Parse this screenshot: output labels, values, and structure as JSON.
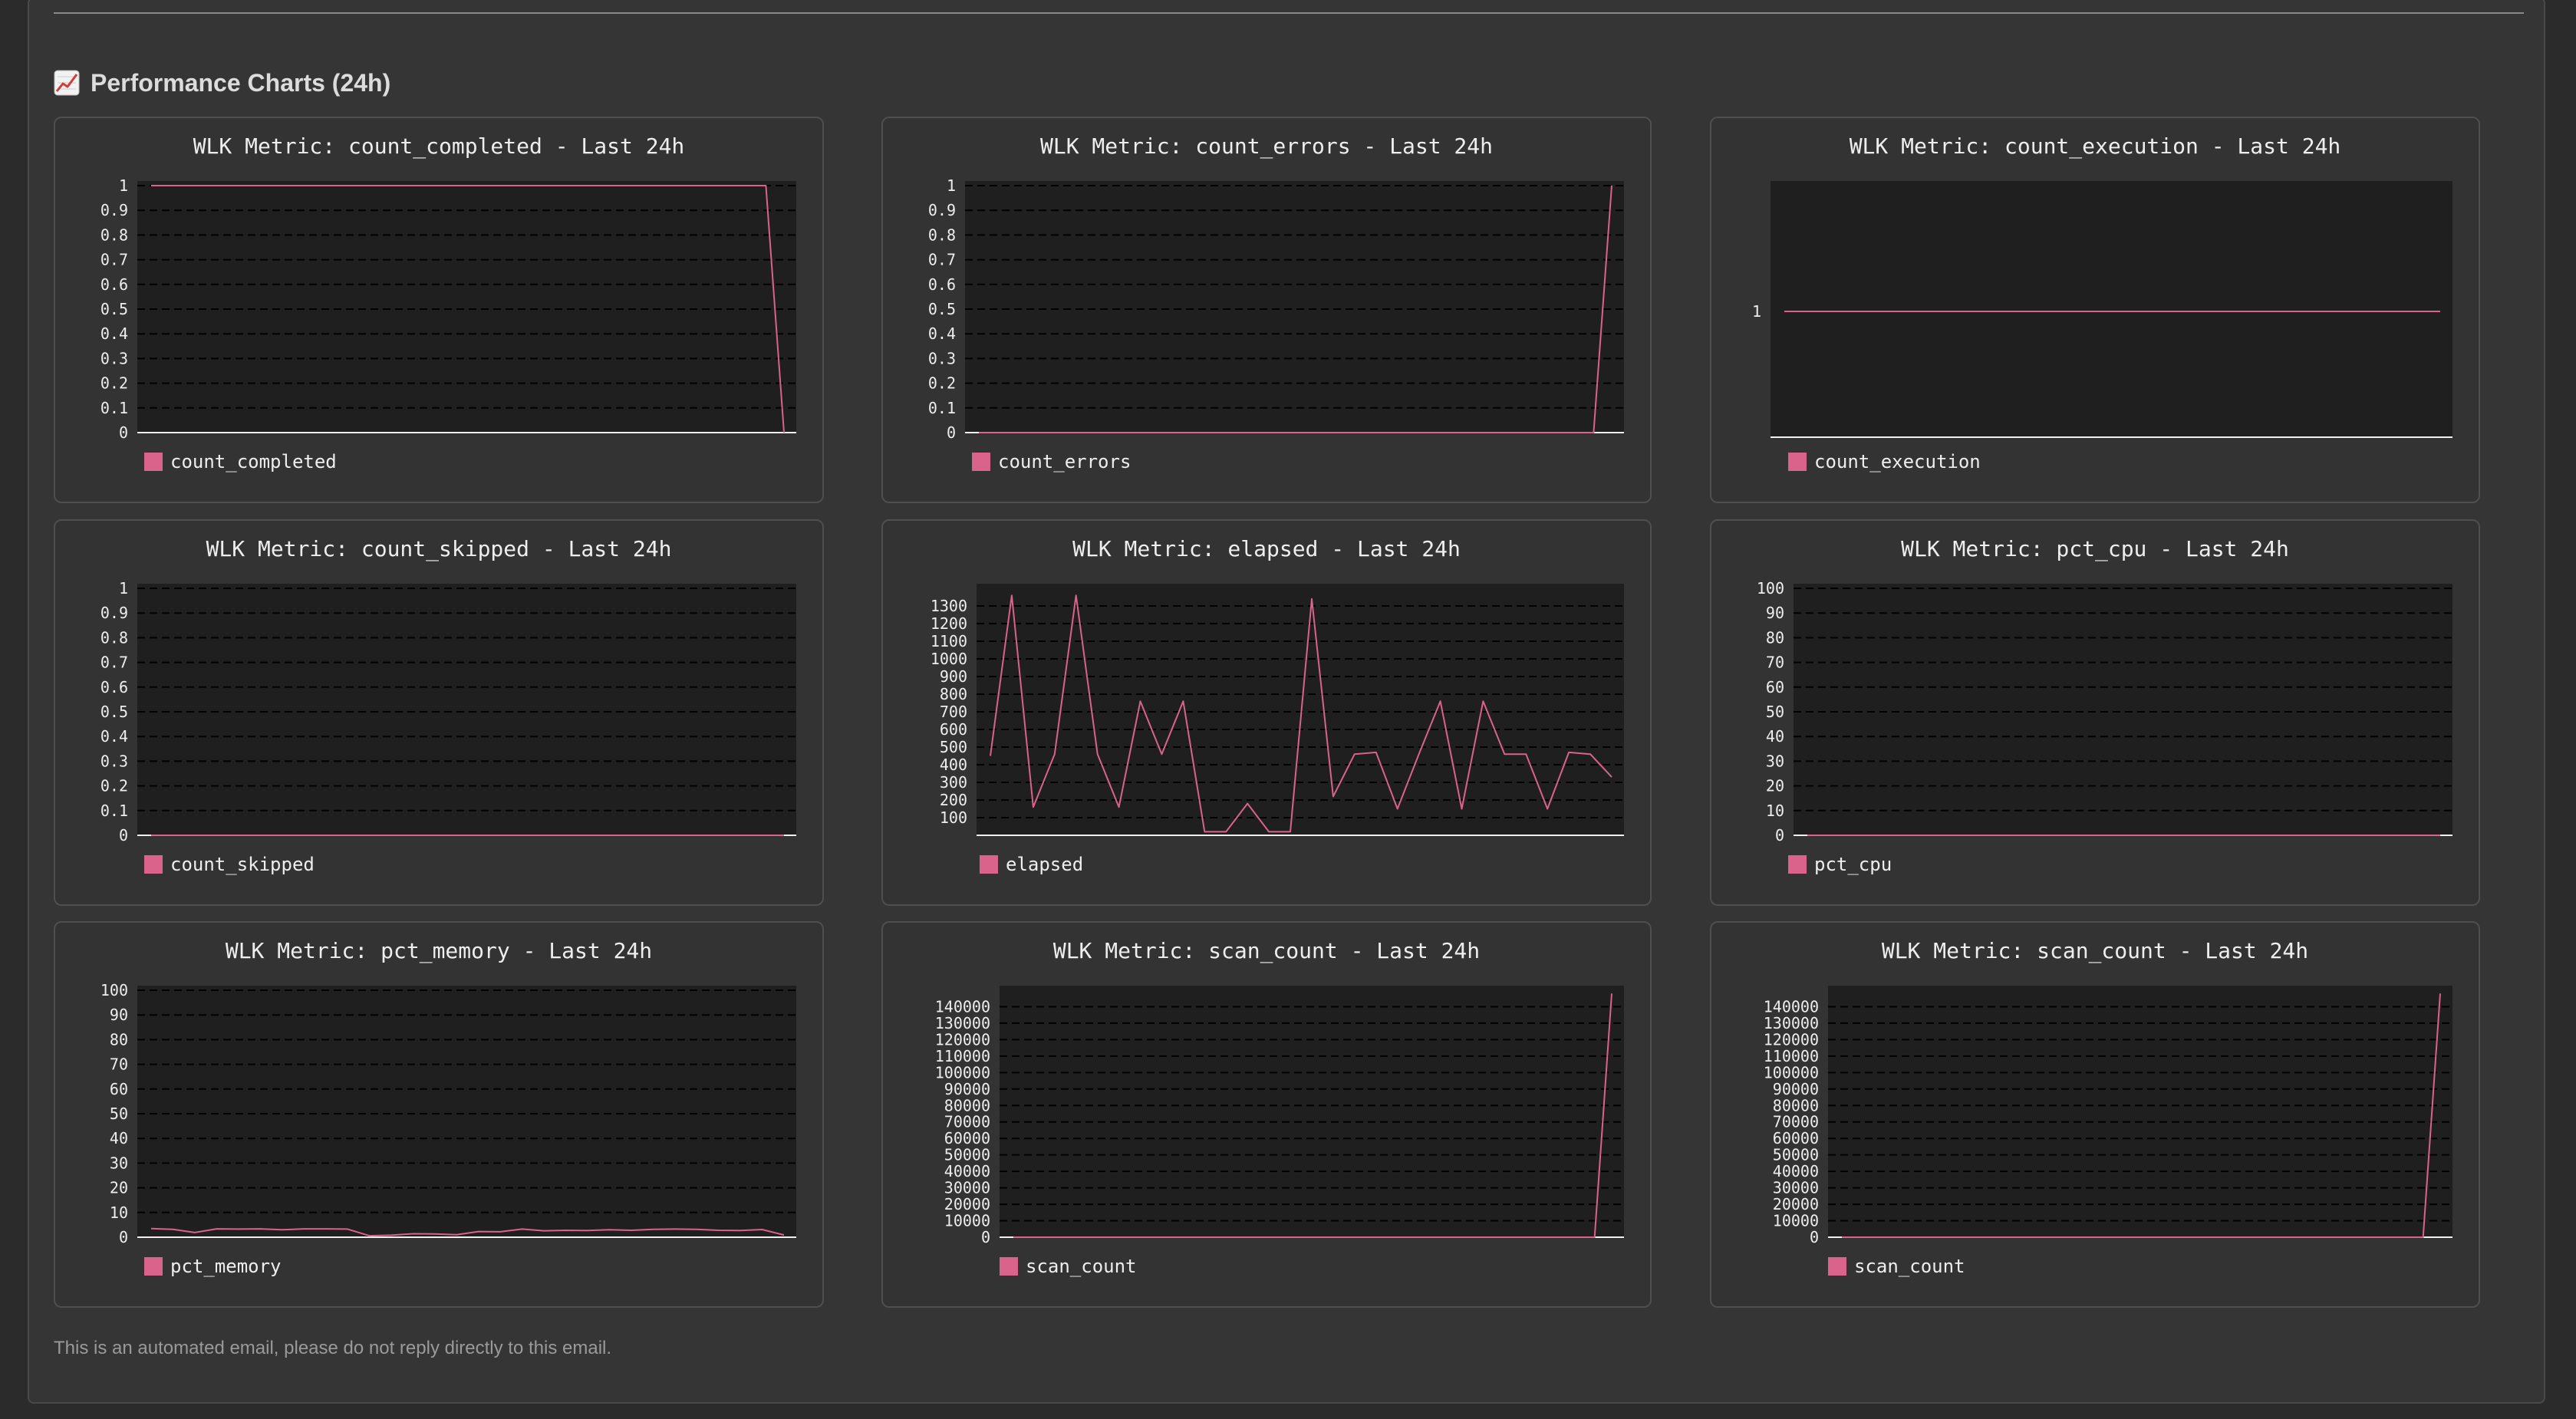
{
  "section": {
    "title": "Performance Charts (24h)",
    "icon": "chart-increasing-icon"
  },
  "colors": {
    "series": "#d9638a",
    "plot_bg": "#1f1f1f",
    "card_bg": "#333333",
    "text": "#eeeeee"
  },
  "chart_data": [
    {
      "type": "line",
      "title": "WLK Metric: count_completed - Last 24h",
      "series": [
        {
          "name": "count_completed",
          "values": [
            1,
            1,
            1,
            1,
            1,
            1,
            1,
            1,
            1,
            1,
            1,
            1,
            1,
            1,
            1,
            1,
            1,
            1,
            1,
            1,
            1,
            1,
            1,
            1,
            1,
            1,
            1,
            1,
            1,
            1,
            1,
            1,
            1,
            1,
            1,
            0
          ]
        }
      ],
      "yticks": [
        0,
        0.1,
        0.2,
        0.3,
        0.4,
        0.5,
        0.6,
        0.7,
        0.8,
        0.9,
        1
      ],
      "ylim": [
        0,
        1
      ],
      "grid": true,
      "legend": "bottom-left"
    },
    {
      "type": "line",
      "title": "WLK Metric: count_errors - Last 24h",
      "series": [
        {
          "name": "count_errors",
          "values": [
            0,
            0,
            0,
            0,
            0,
            0,
            0,
            0,
            0,
            0,
            0,
            0,
            0,
            0,
            0,
            0,
            0,
            0,
            0,
            0,
            0,
            0,
            0,
            0,
            0,
            0,
            0,
            0,
            0,
            0,
            0,
            0,
            0,
            0,
            0,
            1
          ]
        }
      ],
      "yticks": [
        0,
        0.1,
        0.2,
        0.3,
        0.4,
        0.5,
        0.6,
        0.7,
        0.8,
        0.9,
        1
      ],
      "ylim": [
        0,
        1
      ],
      "grid": true,
      "legend": "bottom-left"
    },
    {
      "type": "line",
      "title": "WLK Metric: count_execution - Last 24h",
      "series": [
        {
          "name": "count_execution",
          "values": [
            1,
            1,
            1,
            1,
            1,
            1,
            1,
            1,
            1,
            1,
            1,
            1,
            1,
            1,
            1,
            1,
            1,
            1,
            1,
            1,
            1,
            1,
            1,
            1,
            1,
            1,
            1,
            1,
            1,
            1,
            1,
            1,
            1,
            1,
            1,
            1
          ]
        }
      ],
      "yticks": [
        1
      ],
      "ylim": [
        0,
        2
      ],
      "grid": false,
      "legend": "bottom-left"
    },
    {
      "type": "line",
      "title": "WLK Metric: count_skipped - Last 24h",
      "series": [
        {
          "name": "count_skipped",
          "values": [
            0,
            0,
            0,
            0,
            0,
            0,
            0,
            0,
            0,
            0,
            0,
            0,
            0,
            0,
            0,
            0,
            0,
            0,
            0,
            0,
            0,
            0,
            0,
            0,
            0,
            0,
            0,
            0,
            0,
            0,
            0,
            0,
            0,
            0,
            0,
            0,
            0
          ]
        }
      ],
      "yticks": [
        0,
        0.1,
        0.2,
        0.3,
        0.4,
        0.5,
        0.6,
        0.7,
        0.8,
        0.9,
        1
      ],
      "ylim": [
        0,
        1
      ],
      "grid": true,
      "legend": "bottom-left"
    },
    {
      "type": "line",
      "title": "WLK Metric: elapsed - Last 24h",
      "series": [
        {
          "name": "elapsed",
          "values": [
            450,
            1360,
            160,
            460,
            1360,
            460,
            160,
            760,
            460,
            760,
            20,
            20,
            180,
            20,
            20,
            1340,
            220,
            460,
            470,
            150,
            460,
            760,
            150,
            760,
            460,
            460,
            150,
            470,
            460,
            330
          ]
        }
      ],
      "yticks": [
        100,
        200,
        300,
        400,
        500,
        600,
        700,
        800,
        900,
        1000,
        1100,
        1200,
        1300
      ],
      "ylim": [
        0,
        1400
      ],
      "grid": true,
      "legend": "bottom-left"
    },
    {
      "type": "line",
      "title": "WLK Metric: pct_cpu - Last 24h",
      "series": [
        {
          "name": "pct_cpu",
          "values": [
            0,
            0,
            0,
            0,
            0,
            0,
            0,
            0,
            0,
            0,
            0,
            0,
            0,
            0,
            0,
            0,
            0,
            0,
            0,
            0,
            0,
            0,
            0,
            0,
            0,
            0,
            0,
            0,
            0,
            0,
            0,
            0,
            0,
            0,
            0,
            0,
            0
          ]
        }
      ],
      "yticks": [
        0,
        10,
        20,
        30,
        40,
        50,
        60,
        70,
        80,
        90,
        100
      ],
      "ylim": [
        0,
        100
      ],
      "grid": true,
      "legend": "bottom-left"
    },
    {
      "type": "line",
      "title": "WLK Metric: pct_memory - Last 24h",
      "series": [
        {
          "name": "pct_memory",
          "values": [
            3.5,
            3.2,
            1.9,
            3.4,
            3.3,
            3.4,
            3,
            3.4,
            3.4,
            3.3,
            0.6,
            0.8,
            1.4,
            1.3,
            1,
            2.3,
            2.2,
            3.3,
            2.6,
            2.8,
            2.7,
            3,
            2.8,
            3.2,
            3.3,
            3.2,
            2.8,
            2.7,
            3.1,
            0.9
          ]
        }
      ],
      "yticks": [
        0,
        10,
        20,
        30,
        40,
        50,
        60,
        70,
        80,
        90,
        100
      ],
      "ylim": [
        0,
        100
      ],
      "grid": true,
      "legend": "bottom-left"
    },
    {
      "type": "line",
      "title": "WLK Metric: scan_count - Last 24h",
      "series": [
        {
          "name": "scan_count",
          "values": [
            0,
            0,
            0,
            0,
            0,
            0,
            0,
            0,
            0,
            0,
            0,
            0,
            0,
            0,
            0,
            0,
            0,
            0,
            0,
            0,
            0,
            0,
            0,
            0,
            0,
            0,
            0,
            0,
            0,
            0,
            0,
            0,
            0,
            0,
            0,
            148000
          ]
        }
      ],
      "yticks": [
        0,
        10000,
        20000,
        30000,
        40000,
        50000,
        60000,
        70000,
        80000,
        90000,
        100000,
        110000,
        120000,
        130000,
        140000
      ],
      "ylim": [
        0,
        150000
      ],
      "grid": true,
      "legend": "bottom-left"
    },
    {
      "type": "line",
      "title": "WLK Metric: scan_count - Last 24h",
      "series": [
        {
          "name": "scan_count",
          "values": [
            0,
            0,
            0,
            0,
            0,
            0,
            0,
            0,
            0,
            0,
            0,
            0,
            0,
            0,
            0,
            0,
            0,
            0,
            0,
            0,
            0,
            0,
            0,
            0,
            0,
            0,
            0,
            0,
            0,
            0,
            0,
            0,
            0,
            0,
            0,
            148000
          ]
        }
      ],
      "yticks": [
        0,
        10000,
        20000,
        30000,
        40000,
        50000,
        60000,
        70000,
        80000,
        90000,
        100000,
        110000,
        120000,
        130000,
        140000
      ],
      "ylim": [
        0,
        150000
      ],
      "grid": true,
      "legend": "bottom-left"
    }
  ],
  "footer": {
    "text": "This is an automated email, please do not reply directly to this email."
  }
}
